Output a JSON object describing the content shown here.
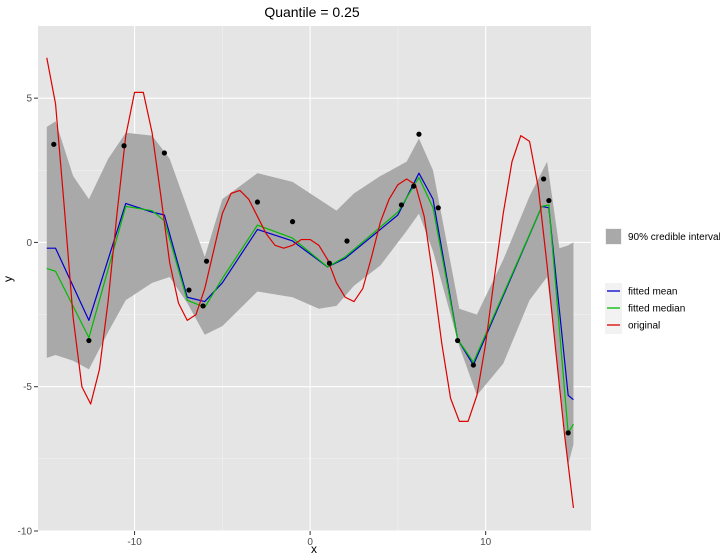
{
  "chart_data": {
    "type": "line",
    "title": "Quantile = 0.25",
    "xlabel": "x",
    "ylabel": "y",
    "xlim": [
      -15.5,
      16.0
    ],
    "ylim": [
      -10.0,
      7.5
    ],
    "grid": true,
    "x_ticks": [
      -10,
      0,
      10
    ],
    "x_tick_labels": [
      "-10",
      "0",
      "10"
    ],
    "y_ticks": [
      -10,
      -5,
      0,
      5
    ],
    "y_tick_labels": [
      "-10",
      "-5",
      "0",
      "5"
    ],
    "legend_placement": "right",
    "legend_band": {
      "label": "90% credible interval",
      "color": "#a9a9a9"
    },
    "legend_lines": [
      {
        "label": "fitted mean",
        "color": "#0000cc"
      },
      {
        "label": "fitted median",
        "color": "#00bb00"
      },
      {
        "label": "original",
        "color": "#dd0000"
      }
    ],
    "points": [
      {
        "x": -14.6,
        "y": 3.4
      },
      {
        "x": -12.6,
        "y": -3.4
      },
      {
        "x": -10.6,
        "y": 3.35
      },
      {
        "x": -8.3,
        "y": 3.1
      },
      {
        "x": -6.9,
        "y": -1.65
      },
      {
        "x": -6.1,
        "y": -2.2
      },
      {
        "x": -5.9,
        "y": -0.65
      },
      {
        "x": -3.0,
        "y": 1.4
      },
      {
        "x": -1.0,
        "y": 0.72
      },
      {
        "x": 1.1,
        "y": -0.72
      },
      {
        "x": 2.1,
        "y": 0.05
      },
      {
        "x": 5.2,
        "y": 1.3
      },
      {
        "x": 5.9,
        "y": 1.95
      },
      {
        "x": 6.2,
        "y": 3.75
      },
      {
        "x": 7.3,
        "y": 1.2
      },
      {
        "x": 8.4,
        "y": -3.4
      },
      {
        "x": 9.3,
        "y": -4.25
      },
      {
        "x": 13.3,
        "y": 2.2
      },
      {
        "x": 13.6,
        "y": 1.45
      },
      {
        "x": 14.7,
        "y": -6.6
      }
    ],
    "band": [
      {
        "x": -15.0,
        "lo": -4.0,
        "hi": 4.0
      },
      {
        "x": -14.5,
        "lo": -3.9,
        "hi": 4.2
      },
      {
        "x": -13.5,
        "lo": -4.1,
        "hi": 2.3
      },
      {
        "x": -12.6,
        "lo": -4.4,
        "hi": 1.5
      },
      {
        "x": -11.5,
        "lo": -3.1,
        "hi": 2.9
      },
      {
        "x": -10.5,
        "lo": -2.0,
        "hi": 3.8
      },
      {
        "x": -9.0,
        "lo": -1.4,
        "hi": 3.7
      },
      {
        "x": -8.0,
        "lo": -1.2,
        "hi": 2.9
      },
      {
        "x": -7.0,
        "lo": -2.1,
        "hi": 1.2
      },
      {
        "x": -6.0,
        "lo": -3.2,
        "hi": -0.5
      },
      {
        "x": -5.0,
        "lo": -2.9,
        "hi": 1.5
      },
      {
        "x": -3.0,
        "lo": -1.7,
        "hi": 2.4
      },
      {
        "x": -1.0,
        "lo": -1.9,
        "hi": 2.1
      },
      {
        "x": 0.5,
        "lo": -2.3,
        "hi": 1.5
      },
      {
        "x": 1.5,
        "lo": -2.2,
        "hi": 1.1
      },
      {
        "x": 2.5,
        "lo": -1.5,
        "hi": 1.7
      },
      {
        "x": 4.0,
        "lo": -0.8,
        "hi": 2.3
      },
      {
        "x": 5.5,
        "lo": 0.4,
        "hi": 2.8
      },
      {
        "x": 6.2,
        "lo": 1.0,
        "hi": 3.6
      },
      {
        "x": 7.0,
        "lo": -0.3,
        "hi": 2.5
      },
      {
        "x": 8.5,
        "lo": -3.6,
        "hi": -2.3
      },
      {
        "x": 9.5,
        "lo": -5.3,
        "hi": -2.5
      },
      {
        "x": 11.0,
        "lo": -4.2,
        "hi": -0.6
      },
      {
        "x": 12.5,
        "lo": -2.0,
        "hi": 1.6
      },
      {
        "x": 13.5,
        "lo": -1.2,
        "hi": 2.8
      },
      {
        "x": 14.2,
        "lo": -4.8,
        "hi": -0.2
      },
      {
        "x": 14.7,
        "lo": -7.7,
        "hi": -0.1
      },
      {
        "x": 15.0,
        "lo": -7.0,
        "hi": 0.0
      }
    ],
    "series": [
      {
        "name": "fitted mean",
        "color": "#0000cc",
        "x": [
          -15.0,
          -14.5,
          -12.6,
          -10.5,
          -9.0,
          -8.3,
          -7.0,
          -6.0,
          -5.0,
          -3.0,
          -1.0,
          1.0,
          2.0,
          5.0,
          6.2,
          7.0,
          8.4,
          9.3,
          13.2,
          13.6,
          14.7,
          15.0
        ],
        "values": [
          -0.2,
          -0.2,
          -2.7,
          1.35,
          1.05,
          0.95,
          -1.9,
          -2.05,
          -1.4,
          0.45,
          0.05,
          -0.85,
          -0.55,
          0.95,
          2.4,
          1.5,
          -3.35,
          -4.25,
          1.25,
          1.2,
          -5.3,
          -5.45
        ]
      },
      {
        "name": "fitted median",
        "color": "#00bb00",
        "x": [
          -15.0,
          -14.5,
          -12.6,
          -10.5,
          -9.0,
          -8.3,
          -7.0,
          -6.0,
          -5.0,
          -3.0,
          -1.0,
          1.0,
          2.0,
          5.0,
          6.2,
          7.0,
          8.4,
          9.3,
          13.2,
          13.6,
          14.7,
          15.0
        ],
        "values": [
          -0.9,
          -1.0,
          -3.3,
          1.25,
          1.1,
          0.75,
          -2.0,
          -2.25,
          -1.25,
          0.6,
          0.15,
          -0.85,
          -0.5,
          1.05,
          2.25,
          1.2,
          -3.35,
          -4.15,
          1.25,
          1.3,
          -6.6,
          -6.3
        ]
      },
      {
        "name": "original",
        "color": "#dd0000",
        "x": [
          -15.0,
          -14.5,
          -14.0,
          -13.5,
          -13.0,
          -12.5,
          -12.0,
          -11.5,
          -11.0,
          -10.5,
          -10.0,
          -9.5,
          -9.0,
          -8.5,
          -8.0,
          -7.5,
          -7.0,
          -6.5,
          -6.0,
          -5.5,
          -5.0,
          -4.5,
          -4.0,
          -3.5,
          -3.0,
          -2.5,
          -2.0,
          -1.5,
          -1.0,
          -0.5,
          0.0,
          0.5,
          1.0,
          1.5,
          2.0,
          2.5,
          3.0,
          3.5,
          4.0,
          4.5,
          5.0,
          5.5,
          6.0,
          6.5,
          7.0,
          7.5,
          8.0,
          8.5,
          9.0,
          9.5,
          10.0,
          10.5,
          11.0,
          11.5,
          12.0,
          12.5,
          13.0,
          13.5,
          14.0,
          14.5,
          15.0
        ],
        "values": [
          6.4,
          4.8,
          1.2,
          -2.6,
          -5.0,
          -5.6,
          -4.4,
          -2.0,
          1.0,
          3.7,
          5.2,
          5.2,
          3.8,
          1.6,
          -0.7,
          -2.1,
          -2.7,
          -2.5,
          -1.6,
          -0.3,
          1.0,
          1.7,
          1.8,
          1.5,
          0.9,
          0.3,
          -0.1,
          -0.2,
          -0.1,
          0.1,
          0.1,
          -0.1,
          -0.6,
          -1.4,
          -1.9,
          -2.05,
          -1.6,
          -0.5,
          0.7,
          1.5,
          2.0,
          2.2,
          2.0,
          0.9,
          -1.2,
          -3.5,
          -5.4,
          -6.2,
          -6.2,
          -5.3,
          -3.5,
          -1.2,
          1.0,
          2.8,
          3.7,
          3.5,
          1.9,
          -0.8,
          -3.8,
          -6.7,
          -9.2
        ]
      }
    ]
  }
}
